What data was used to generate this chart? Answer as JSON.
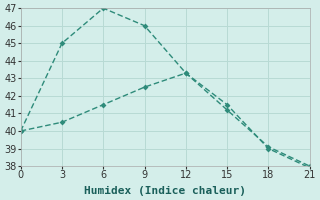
{
  "line1_x": [
    0,
    3,
    6,
    9,
    12,
    15,
    18,
    21
  ],
  "line1_y": [
    40,
    45,
    47,
    46,
    43.3,
    41.2,
    39.1,
    38.0
  ],
  "line2_x": [
    0,
    3,
    6,
    9,
    12,
    15,
    18,
    21
  ],
  "line2_y": [
    40,
    40.5,
    41.5,
    42.5,
    43.3,
    41.5,
    39.0,
    37.9
  ],
  "line_color": "#2e8b7a",
  "bg_color": "#d4eeea",
  "grid_color": "#b8dad4",
  "xlabel": "Humidex (Indice chaleur)",
  "xlim": [
    0,
    21
  ],
  "ylim": [
    38,
    47
  ],
  "xticks": [
    0,
    3,
    6,
    9,
    12,
    15,
    18,
    21
  ],
  "yticks": [
    38,
    39,
    40,
    41,
    42,
    43,
    44,
    45,
    46,
    47
  ],
  "markersize": 3,
  "linewidth": 1.0,
  "xlabel_fontsize": 8,
  "tick_fontsize": 7
}
